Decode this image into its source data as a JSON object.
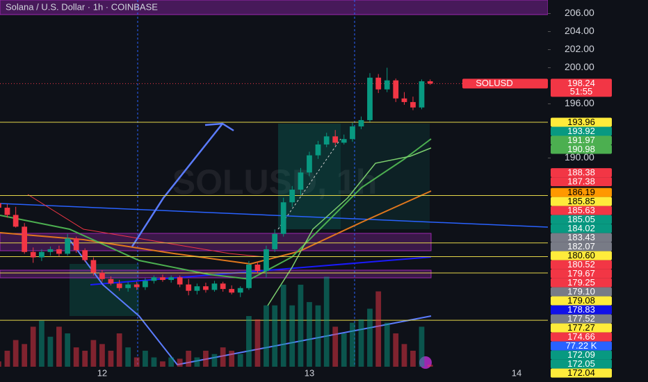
{
  "chart_data": {
    "type": "candlestick",
    "title": "Solana / U.S. Dollar · 1h · COINBASE",
    "watermark": "SOLUSD, 1h",
    "up_color": "#089981",
    "down_color": "#f23645",
    "xlim": [
      11.507,
      14.151
    ],
    "xticks": [
      12,
      13,
      14
    ],
    "ylim": [
      165.2,
      207.5
    ],
    "yticks": [
      {
        "value": 206,
        "label": "206.00"
      },
      {
        "value": 204,
        "label": "204.00"
      },
      {
        "value": 202,
        "label": "202.00"
      },
      {
        "value": 200,
        "label": "200.00"
      },
      {
        "value": 196,
        "label": "196.00"
      },
      {
        "value": 190,
        "label": "190.00"
      }
    ],
    "vol_ylim": [
      0,
      550
    ],
    "x": [
      11.5,
      11.542,
      11.583,
      11.625,
      11.667,
      11.708,
      11.75,
      11.792,
      11.833,
      11.875,
      11.917,
      11.958,
      12,
      12.042,
      12.083,
      12.125,
      12.167,
      12.208,
      12.25,
      12.292,
      12.333,
      12.375,
      12.417,
      12.458,
      12.5,
      12.542,
      12.583,
      12.625,
      12.667,
      12.708,
      12.75,
      12.792,
      12.833,
      12.875,
      12.917,
      12.958,
      13,
      13.042,
      13.083,
      13.125,
      13.167,
      13.208,
      13.25,
      13.292,
      13.333,
      13.375,
      13.417,
      13.458,
      13.5,
      13.542,
      13.583
    ],
    "open": [
      185.0,
      184.5,
      183.7,
      182.4,
      179.6,
      179.0,
      179.6,
      179.9,
      179.4,
      181.1,
      179.8,
      178.7,
      177.3,
      176.6,
      176.1,
      175.6,
      176.0,
      175.7,
      176.4,
      176.8,
      176.5,
      176.8,
      176.0,
      175.3,
      175.8,
      175.4,
      176.1,
      175.5,
      175.1,
      175.6,
      178.2,
      177.5,
      179.9,
      181.6,
      185.1,
      186.5,
      188.4,
      190.3,
      191.5,
      192.4,
      191.7,
      192.1,
      193.5,
      194.2,
      198.9,
      197.6,
      198.6,
      196.6,
      196.2,
      195.6,
      198.5
    ],
    "high": [
      185.3,
      184.9,
      184.6,
      182.8,
      180.1,
      179.9,
      180.2,
      180.3,
      181.6,
      181.3,
      180.0,
      179.0,
      177.6,
      176.9,
      176.5,
      176.3,
      176.3,
      176.7,
      177.0,
      177.1,
      177.0,
      177.0,
      176.6,
      176.1,
      176.2,
      176.4,
      176.3,
      175.9,
      175.8,
      178.6,
      178.5,
      180.3,
      182.1,
      185.6,
      186.9,
      188.9,
      190.7,
      191.9,
      192.8,
      193.1,
      192.6,
      193.9,
      194.6,
      199.4,
      199.3,
      200.0,
      198.8,
      197.3,
      196.8,
      198.7,
      198.7
    ],
    "low": [
      184.2,
      183.4,
      182.3,
      179.4,
      178.4,
      178.6,
      179.2,
      179.1,
      179.2,
      179.5,
      178.5,
      177.0,
      176.3,
      175.9,
      175.3,
      175.2,
      175.4,
      175.4,
      176.1,
      176.3,
      176.2,
      175.7,
      174.8,
      174.9,
      175.1,
      175.2,
      175.2,
      174.9,
      174.6,
      175.4,
      177.2,
      176.8,
      179.6,
      181.3,
      184.6,
      185.9,
      188.0,
      189.9,
      191.2,
      191.4,
      191.5,
      191.8,
      193.2,
      194.0,
      197.2,
      197.3,
      196.2,
      195.9,
      195.3,
      195.4,
      198.1
    ],
    "close": [
      184.5,
      183.7,
      182.4,
      179.6,
      179.0,
      179.6,
      179.9,
      179.4,
      181.1,
      179.8,
      178.7,
      177.3,
      176.6,
      176.1,
      175.6,
      176.0,
      175.7,
      176.4,
      176.8,
      176.5,
      176.8,
      176.0,
      175.3,
      175.8,
      175.4,
      176.1,
      175.5,
      175.1,
      175.6,
      178.2,
      177.5,
      179.9,
      181.6,
      185.1,
      186.5,
      188.4,
      190.3,
      191.5,
      192.4,
      191.7,
      192.1,
      193.5,
      194.2,
      198.9,
      197.6,
      198.6,
      196.6,
      196.2,
      195.6,
      198.5,
      198.24
    ],
    "volume": [
      8,
      24,
      40,
      34,
      60,
      69,
      45,
      60,
      50,
      29,
      24,
      40,
      34,
      24,
      50,
      29,
      14,
      24,
      14,
      8,
      14,
      12,
      24,
      14,
      24,
      19,
      29,
      24,
      19,
      76,
      71,
      92,
      92,
      123,
      92,
      123,
      97,
      92,
      135,
      60,
      50,
      66,
      71,
      87,
      113,
      66,
      50,
      34,
      24,
      60,
      3
    ],
    "last_price": {
      "symbol": "SOLUSD",
      "price": 198.24,
      "countdown": "51:55",
      "color": "#f23645"
    },
    "badges": [
      {
        "value": 193.96,
        "label": "193.96",
        "color": "#ffeb3b",
        "hline": true
      },
      {
        "value": 193.92,
        "label": "193.92",
        "color": "#089981"
      },
      {
        "value": 191.97,
        "label": "191.97",
        "color": "#4caf50"
      },
      {
        "value": 190.98,
        "label": "190.98",
        "color": "#4caf50"
      },
      {
        "value": 188.38,
        "label": "188.38",
        "color": "#f23645"
      },
      {
        "value": 187.38,
        "label": "187.38",
        "color": "#f23645"
      },
      {
        "value": 186.19,
        "label": "186.19",
        "color": "#ff9800"
      },
      {
        "value": 185.85,
        "label": "185.85",
        "color": "#ffeb3b",
        "hline": true
      },
      {
        "value": 185.63,
        "label": "185.63",
        "color": "#f23645"
      },
      {
        "value": 185.05,
        "label": "185.05",
        "color": "#089981"
      },
      {
        "value": 184.02,
        "label": "184.02",
        "color": "#089981"
      },
      {
        "value": 183.43,
        "label": "183.43",
        "color": "#787b86"
      },
      {
        "value": 182.07,
        "label": "182.07",
        "color": "#787b86"
      },
      {
        "value": 180.6,
        "label": "180.60",
        "color": "#ffeb3b",
        "hline": true
      },
      {
        "value": 180.52,
        "label": "180.52",
        "color": "#f23645"
      },
      {
        "value": 179.67,
        "label": "179.67",
        "color": "#f23645"
      },
      {
        "value": 179.25,
        "label": "179.25",
        "color": "#f23645"
      },
      {
        "value": 179.1,
        "label": "179.10",
        "color": "#787b86"
      },
      {
        "value": 179.08,
        "label": "179.08",
        "color": "#ffeb3b",
        "hline": true
      },
      {
        "value": 178.83,
        "label": "178.83",
        "color": "#1010e8"
      },
      {
        "value": 177.52,
        "label": "177.52",
        "color": "#787b86"
      },
      {
        "value": 177.27,
        "label": "177.27",
        "color": "#ffeb3b",
        "hline": true
      },
      {
        "value": 174.66,
        "label": "174.66",
        "color": "#f23645"
      },
      {
        "label": "77.22 K",
        "color": "#2962ff"
      },
      {
        "value": 172.09,
        "label": "172.09",
        "color": "#089981"
      },
      {
        "value": 172.05,
        "label": "172.05",
        "color": "#089981"
      },
      {
        "value": 172.04,
        "label": "172.04",
        "color": "#ffeb3b",
        "hline": true
      }
    ]
  }
}
